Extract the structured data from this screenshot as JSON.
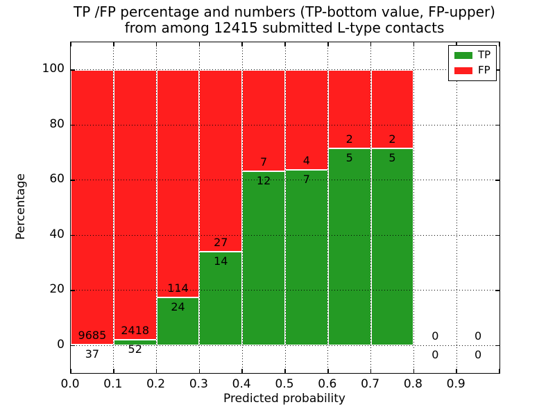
{
  "chart_data": {
    "type": "bar",
    "stacked": true,
    "title_lines": [
      "TP /FP percentage and numbers (TP-bottom value, FP-upper)",
      "from among 12415 submitted L-type contacts"
    ],
    "title": "TP /FP percentage and numbers (TP-bottom value, FP-upper) from among 12415 submitted L-type contacts",
    "total_contacts": 12415,
    "xlabel": "Predicted probability",
    "ylabel": "Percentage",
    "bin_starts": [
      0.0,
      0.1,
      0.2,
      0.3,
      0.4,
      0.5,
      0.6,
      0.7,
      0.8,
      0.9
    ],
    "bin_width": 0.1,
    "series": [
      {
        "name": "TP",
        "counts": [
          37,
          52,
          24,
          14,
          12,
          7,
          5,
          5,
          0,
          0
        ],
        "color": "#249a24"
      },
      {
        "name": "FP",
        "counts": [
          9685,
          2418,
          114,
          27,
          7,
          4,
          2,
          2,
          0,
          0
        ],
        "color": "#ff1e1e"
      }
    ],
    "annotation_note": "TP-bottom value, FP-upper; zero bins annotated with 0 above and below axis",
    "xticks": [
      "0.0",
      "0.1",
      "0.2",
      "0.3",
      "0.4",
      "0.5",
      "0.6",
      "0.7",
      "0.8",
      "0.9"
    ],
    "yticks": [
      "0",
      "20",
      "40",
      "60",
      "80",
      "100"
    ],
    "ytick_values": [
      0,
      20,
      40,
      60,
      80,
      100
    ],
    "xtick_values": [
      0.0,
      0.1,
      0.2,
      0.3,
      0.4,
      0.5,
      0.6,
      0.7,
      0.8,
      0.9
    ],
    "xlim": [
      0.0,
      1.0
    ],
    "ylim": [
      -10,
      110
    ],
    "grid": true,
    "grid_style": "dotted-black",
    "legend_position": "upper right",
    "colors": {
      "tp": "#249a24",
      "fp": "#ff1e1e",
      "bar_edge": "#ffffff",
      "grid": "#000000",
      "spine": "#000000",
      "background": "#ffffff",
      "text": "#000000"
    }
  }
}
